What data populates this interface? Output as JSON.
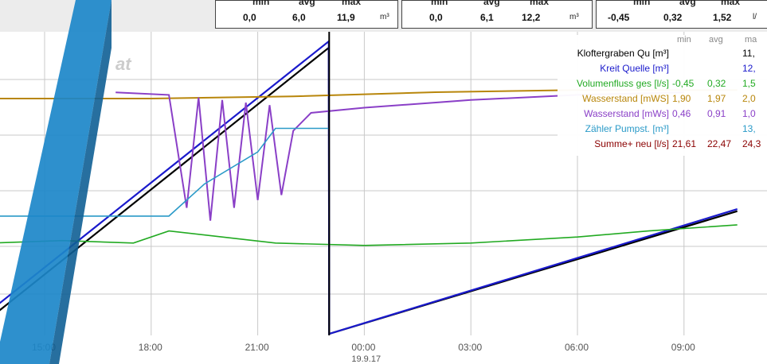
{
  "stats": [
    {
      "headers": [
        "min",
        "avg",
        "max"
      ],
      "values": [
        "0,0",
        "6,0",
        "11,9"
      ],
      "unit": "m³"
    },
    {
      "headers": [
        "min",
        "avg",
        "max"
      ],
      "values": [
        "0,0",
        "6,1",
        "12,2"
      ],
      "unit": "m³"
    },
    {
      "headers": [
        "min",
        "avg",
        "max"
      ],
      "values": [
        "-0,45",
        "0,32",
        "1,52"
      ],
      "unit": "l/"
    }
  ],
  "watermark_text": "at",
  "legend": {
    "columns": [
      "min",
      "avg",
      "ma"
    ],
    "rows": [
      {
        "name": "Kloftergraben Qu [m³]",
        "min": "",
        "avg": "",
        "max": "11,",
        "color": "#000000"
      },
      {
        "name": "Kreit Quelle [m³]",
        "min": "",
        "avg": "",
        "max": "12,",
        "color": "#1a1acc"
      },
      {
        "name": "Volumenfluss ges [l/s]",
        "min": "-0,45",
        "avg": "0,32",
        "max": "1,5",
        "color": "#22aa22"
      },
      {
        "name": "Wasserstand [mWS]",
        "min": "1,90",
        "avg": "1,97",
        "max": "2,0",
        "color": "#b8860b"
      },
      {
        "name": "Wasserstand [mWs]",
        "min": "0,46",
        "avg": "0,91",
        "max": "1,0",
        "color": "#8a3fc7"
      },
      {
        "name": "Zähler Pumpst. [m³]",
        "min": "",
        "avg": "",
        "max": "13,",
        "color": "#2a9ac8"
      },
      {
        "name": "Summe+ neu [l/s]",
        "min": "21,61",
        "avg": "22,47",
        "max": "24,3",
        "color": "#8b0000"
      }
    ]
  },
  "chart_data": {
    "type": "line",
    "x_axis": {
      "ticks": [
        "15:00",
        "18:00",
        "21:00",
        "00:00",
        "03:00",
        "06:00",
        "09:00"
      ],
      "date_label": "19.9.17",
      "range": [
        "13:30",
        "10:30"
      ]
    },
    "grid": true,
    "legend_placement": "top-right",
    "series": [
      {
        "name": "Kloftergraben Qu [m³]",
        "color": "#000000",
        "points": [
          [
            "13:30",
            0.7
          ],
          [
            "23:00",
            11.9
          ],
          [
            "23:01",
            0.0
          ],
          [
            "10:30",
            5.1
          ]
        ]
      },
      {
        "name": "Kreit Quelle [m³]",
        "color": "#1a1acc",
        "points": [
          [
            "13:30",
            1.0
          ],
          [
            "23:00",
            12.2
          ],
          [
            "23:01",
            0.0
          ],
          [
            "10:30",
            5.2
          ]
        ]
      },
      {
        "name": "Volumenfluss ges [l/s]",
        "color": "#22aa22",
        "points": [
          [
            "13:30",
            0.3
          ],
          [
            "15:30",
            0.32
          ],
          [
            "17:30",
            0.3
          ],
          [
            "18:30",
            0.4
          ],
          [
            "20:00",
            0.35
          ],
          [
            "21:30",
            0.3
          ],
          [
            "00:00",
            0.28
          ],
          [
            "03:00",
            0.3
          ],
          [
            "06:00",
            0.35
          ],
          [
            "08:00",
            0.4
          ],
          [
            "10:30",
            0.45
          ]
        ]
      },
      {
        "name": "Wasserstand [mWS]",
        "color": "#b8860b",
        "points": [
          [
            "13:30",
            1.96
          ],
          [
            "18:00",
            1.96
          ],
          [
            "22:00",
            1.97
          ],
          [
            "02:00",
            1.99
          ],
          [
            "06:00",
            2.0
          ],
          [
            "10:30",
            2.0
          ]
        ]
      },
      {
        "name": "Wasserstand [mWs]",
        "color": "#8a3fc7",
        "points": [
          [
            "17:00",
            1.0
          ],
          [
            "18:30",
            0.99
          ],
          [
            "19:00",
            0.55
          ],
          [
            "19:20",
            0.98
          ],
          [
            "19:40",
            0.5
          ],
          [
            "20:00",
            0.97
          ],
          [
            "20:20",
            0.55
          ],
          [
            "20:40",
            0.96
          ],
          [
            "21:00",
            0.58
          ],
          [
            "21:20",
            0.95
          ],
          [
            "21:40",
            0.6
          ],
          [
            "22:00",
            0.85
          ],
          [
            "22:30",
            0.92
          ],
          [
            "00:00",
            0.94
          ],
          [
            "03:00",
            0.97
          ],
          [
            "06:00",
            0.99
          ],
          [
            "09:00",
            1.0
          ]
        ]
      },
      {
        "name": "Zähler Pumpst. [m³]",
        "color": "#2a9ac8",
        "points": [
          [
            "13:30",
            5.5
          ],
          [
            "18:30",
            5.5
          ],
          [
            "19:30",
            7.0
          ],
          [
            "21:00",
            8.5
          ],
          [
            "21:30",
            9.6
          ],
          [
            "23:00",
            9.6
          ]
        ]
      }
    ]
  }
}
